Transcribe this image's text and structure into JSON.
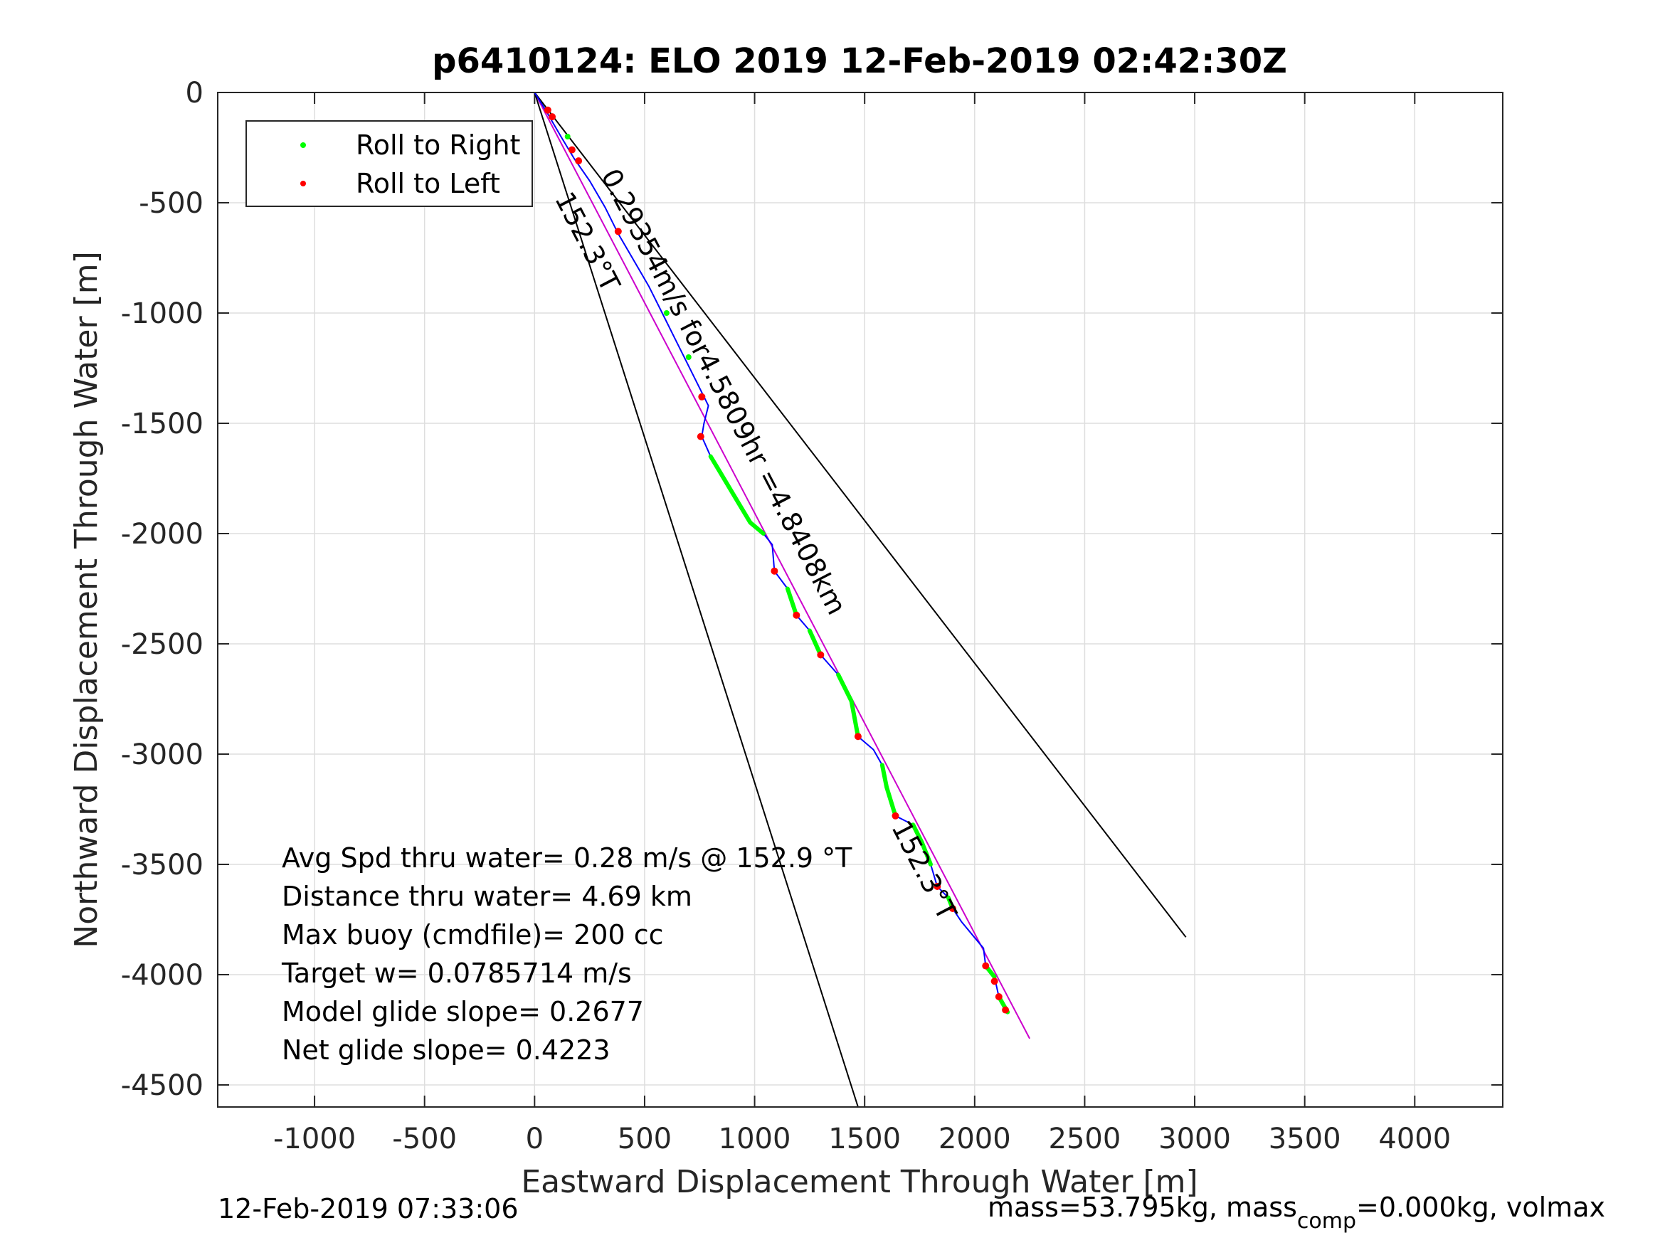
{
  "chart_data": {
    "type": "line",
    "title": "p6410124: ELO 2019 12-Feb-2019 02:42:30Z",
    "xlabel": "Eastward Displacement Through Water [m]",
    "ylabel": "Northward Displacement Through Water [m]",
    "xlim": [
      -1440,
      4400
    ],
    "ylim": [
      -4600,
      0
    ],
    "xticks": [
      -1000,
      -500,
      0,
      500,
      1000,
      1500,
      2000,
      2500,
      3000,
      3500,
      4000
    ],
    "yticks": [
      0,
      -500,
      -1000,
      -1500,
      -2000,
      -2500,
      -3000,
      -3500,
      -4000,
      -4500
    ],
    "grid": true,
    "legend": {
      "placement": "top-left",
      "entries": [
        {
          "label": "Roll to Right",
          "color": "#00ff00"
        },
        {
          "label": "Roll to Left",
          "color": "#ff0000"
        }
      ]
    },
    "track": {
      "color": "#0000ff",
      "points": [
        [
          0,
          0
        ],
        [
          50,
          -80
        ],
        [
          120,
          -200
        ],
        [
          180,
          -300
        ],
        [
          250,
          -400
        ],
        [
          320,
          -520
        ],
        [
          380,
          -640
        ],
        [
          450,
          -760
        ],
        [
          520,
          -880
        ],
        [
          580,
          -1000
        ],
        [
          640,
          -1120
        ],
        [
          700,
          -1240
        ],
        [
          760,
          -1360
        ],
        [
          790,
          -1420
        ],
        [
          770,
          -1500
        ],
        [
          760,
          -1560
        ],
        [
          800,
          -1650
        ],
        [
          860,
          -1750
        ],
        [
          920,
          -1850
        ],
        [
          980,
          -1950
        ],
        [
          1040,
          -2000
        ],
        [
          1080,
          -2050
        ],
        [
          1090,
          -2170
        ],
        [
          1150,
          -2250
        ],
        [
          1190,
          -2370
        ],
        [
          1250,
          -2440
        ],
        [
          1300,
          -2550
        ],
        [
          1380,
          -2640
        ],
        [
          1440,
          -2760
        ],
        [
          1470,
          -2920
        ],
        [
          1540,
          -2980
        ],
        [
          1580,
          -3050
        ],
        [
          1600,
          -3150
        ],
        [
          1640,
          -3280
        ],
        [
          1720,
          -3320
        ],
        [
          1760,
          -3400
        ],
        [
          1800,
          -3500
        ],
        [
          1830,
          -3600
        ],
        [
          1880,
          -3650
        ],
        [
          1900,
          -3700
        ],
        [
          1940,
          -3760
        ],
        [
          1990,
          -3820
        ],
        [
          2040,
          -3880
        ],
        [
          2050,
          -3960
        ],
        [
          2090,
          -4010
        ],
        [
          2110,
          -4100
        ],
        [
          2140,
          -4150
        ],
        [
          2150,
          -4170
        ]
      ]
    },
    "rolls": [
      {
        "type": "right",
        "points": [
          [
            800,
            -1650
          ],
          [
            860,
            -1750
          ],
          [
            920,
            -1850
          ],
          [
            980,
            -1950
          ],
          [
            1040,
            -2000
          ]
        ]
      },
      {
        "type": "right",
        "points": [
          [
            1150,
            -2250
          ],
          [
            1190,
            -2370
          ]
        ]
      },
      {
        "type": "right",
        "points": [
          [
            1250,
            -2440
          ],
          [
            1300,
            -2550
          ]
        ]
      },
      {
        "type": "right",
        "points": [
          [
            1380,
            -2640
          ],
          [
            1440,
            -2760
          ],
          [
            1470,
            -2920
          ]
        ]
      },
      {
        "type": "right",
        "points": [
          [
            1580,
            -3050
          ],
          [
            1600,
            -3150
          ],
          [
            1640,
            -3280
          ]
        ]
      },
      {
        "type": "right",
        "points": [
          [
            1720,
            -3320
          ],
          [
            1760,
            -3400
          ],
          [
            1800,
            -3500
          ]
        ]
      },
      {
        "type": "right",
        "points": [
          [
            1880,
            -3650
          ],
          [
            1900,
            -3700
          ]
        ]
      },
      {
        "type": "right",
        "points": [
          [
            2050,
            -3960
          ],
          [
            2090,
            -4010
          ]
        ]
      },
      {
        "type": "right",
        "points": [
          [
            2110,
            -4100
          ],
          [
            2150,
            -4170
          ]
        ]
      },
      {
        "type": "right_dots",
        "points": [
          [
            600,
            -1000
          ],
          [
            700,
            -1200
          ],
          [
            150,
            -200
          ]
        ]
      },
      {
        "type": "left",
        "points": [
          [
            60,
            -80
          ],
          [
            80,
            -110
          ],
          [
            170,
            -260
          ],
          [
            200,
            -310
          ],
          [
            380,
            -630
          ],
          [
            760,
            -1380
          ],
          [
            755,
            -1560
          ],
          [
            1090,
            -2170
          ],
          [
            1190,
            -2370
          ],
          [
            1300,
            -2550
          ],
          [
            1470,
            -2920
          ],
          [
            1640,
            -3280
          ],
          [
            1830,
            -3600
          ],
          [
            1900,
            -3700
          ],
          [
            2050,
            -3960
          ],
          [
            2090,
            -4030
          ],
          [
            2110,
            -4100
          ],
          [
            2140,
            -4160
          ]
        ]
      }
    ],
    "reference_lines": [
      {
        "name": "net-glide-line",
        "color": "#cc00cc",
        "from": [
          0,
          0
        ],
        "to": [
          2250,
          -4290
        ]
      },
      {
        "name": "bound-line-right",
        "color": "#000000",
        "from": [
          0,
          0
        ],
        "to": [
          2960,
          -3830
        ]
      },
      {
        "name": "bound-line-left",
        "color": "#000000",
        "from": [
          0,
          0
        ],
        "to": [
          1470,
          -4600
        ]
      }
    ],
    "annotations": [
      {
        "text": "0.29354m/s for4.5809hr =4.8408km",
        "x": 300,
        "y": -375,
        "angle": 62.5
      },
      {
        "text": "152.3°T",
        "x": 90,
        "y": -480,
        "angle": 62.5
      },
      {
        "text": "152.3°T",
        "x": 1620,
        "y": -3330,
        "angle": 62.5
      }
    ],
    "stats": [
      "Avg Spd thru water=  0.28 m/s @ 152.9 °T",
      "Distance thru water=  4.69 km",
      "Max buoy (cmdfile)= 200 cc",
      "Target w= 0.0785714 m/s",
      "Model glide slope= 0.2677",
      "Net glide slope= 0.4223"
    ]
  },
  "footer": {
    "timestamp": "12-Feb-2019 07:33:06",
    "mass_text_a": "mass=53.795kg, mass",
    "mass_sub": "comp",
    "mass_text_b": "=0.000kg, volmax"
  }
}
